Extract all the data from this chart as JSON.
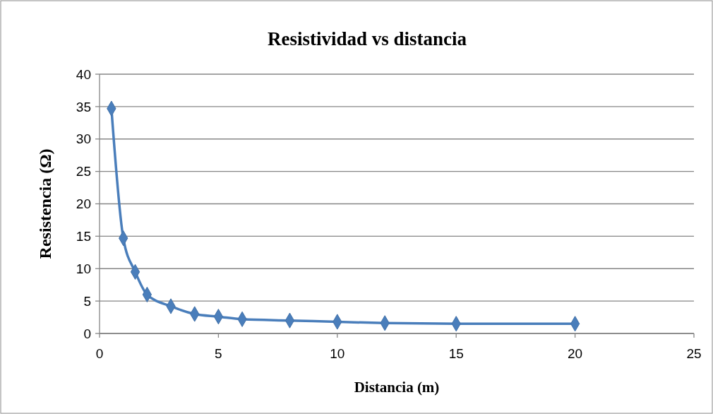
{
  "chart_data": {
    "type": "line",
    "title": "Resistividad vs distancia",
    "xlabel": "Distancia (m)",
    "ylabel": "Resistencia (Ω)",
    "x": [
      0.5,
      1,
      1.5,
      2,
      3,
      4,
      5,
      6,
      8,
      10,
      12,
      15,
      20
    ],
    "series": [
      {
        "color": "#4a7ebb",
        "values": [
          34.7,
          14.7,
          9.5,
          6.0,
          4.2,
          3.0,
          2.6,
          2.2,
          2.0,
          1.8,
          1.6,
          1.5,
          1.5
        ]
      }
    ],
    "xlim": [
      0,
      25
    ],
    "xticks": [
      0,
      5,
      10,
      15,
      20,
      25
    ],
    "ylim": [
      0,
      40
    ],
    "yticks": [
      0,
      5,
      10,
      15,
      20,
      25,
      30,
      35,
      40
    ],
    "grid": "y",
    "marker": "diamond",
    "line_style": "solid"
  }
}
